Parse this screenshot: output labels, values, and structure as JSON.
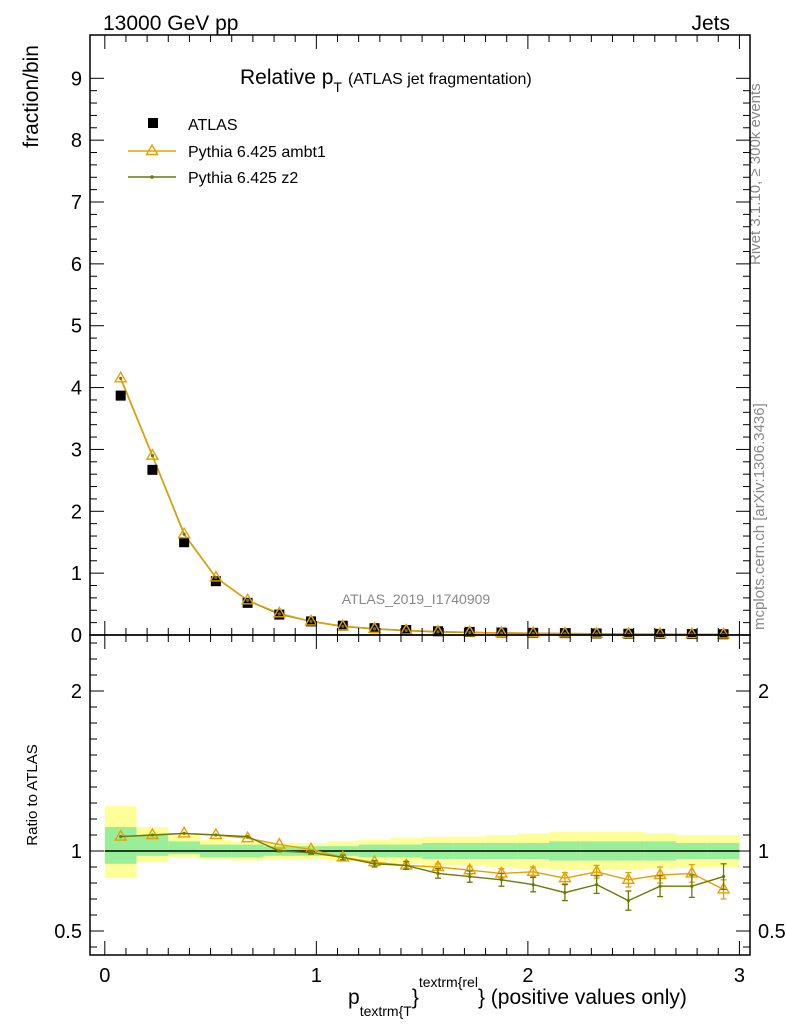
{
  "header": {
    "left": "13000 GeV pp",
    "right": "Jets"
  },
  "side_labels": {
    "rivet": "Rivet 3.1.10, ≥ 300k events",
    "mcplots": "mcplots.cern.ch [arXiv:1306.3436]"
  },
  "chart_data": [
    {
      "type": "scatter",
      "title_main": "Relative p",
      "title_sub": "T",
      "title_paren": "(ATLAS jet fragmentation)",
      "ylabel": "fraction/bin",
      "watermark": "ATLAS_2019_I1740909",
      "xlim": [
        -0.07,
        3.05
      ],
      "ylim": [
        0,
        9.7
      ],
      "yticks": [
        0,
        1,
        2,
        3,
        4,
        5,
        6,
        7,
        8,
        9
      ],
      "x": [
        0.075,
        0.225,
        0.375,
        0.525,
        0.675,
        0.825,
        0.975,
        1.125,
        1.275,
        1.425,
        1.575,
        1.725,
        1.875,
        2.025,
        2.175,
        2.325,
        2.475,
        2.625,
        2.775,
        2.925
      ],
      "legend": [
        {
          "name": "ATLAS",
          "color": "#000000",
          "marker": "square"
        },
        {
          "name": "Pythia 6.425 ambt1",
          "color": "#e8a000",
          "marker": "triangle"
        },
        {
          "name": "Pythia 6.425 z2",
          "color": "#6b7a00",
          "marker": "dot"
        }
      ],
      "series": [
        {
          "values": [
            3.87,
            2.67,
            1.5,
            0.87,
            0.52,
            0.33,
            0.22,
            0.15,
            0.11,
            0.08,
            0.06,
            0.05,
            0.04,
            0.035,
            0.03,
            0.025,
            0.02,
            0.018,
            0.015,
            0.012
          ]
        },
        {
          "values": [
            4.15,
            2.9,
            1.63,
            0.93,
            0.56,
            0.35,
            0.22,
            0.14,
            0.1,
            0.073,
            0.055,
            0.044,
            0.034,
            0.03,
            0.025,
            0.021,
            0.016,
            0.015,
            0.013,
            0.009
          ]
        },
        {
          "values": [
            4.15,
            2.9,
            1.63,
            0.93,
            0.56,
            0.34,
            0.22,
            0.14,
            0.1,
            0.072,
            0.051,
            0.041,
            0.032,
            0.027,
            0.022,
            0.02,
            0.014,
            0.014,
            0.012,
            0.01
          ]
        }
      ]
    },
    {
      "type": "line",
      "ylabel": "Ratio to ATLAS",
      "xlabel_main": "p",
      "xlabel_sub": "textrm{T",
      "xlabel_sup": "textrm{rel",
      "xlabel_tail": "} (positive values only)",
      "xlim": [
        -0.07,
        3.05
      ],
      "ylim": [
        0.35,
        2.35
      ],
      "xticks": [
        0,
        1,
        2,
        3
      ],
      "ytick_labels": [
        {
          "value": 0.5,
          "label": "0.5"
        },
        {
          "value": 1,
          "label": "1"
        },
        {
          "value": 2,
          "label": "2"
        }
      ],
      "reference": 1,
      "bins": [
        {
          "lo": 0.0,
          "hi": 0.15,
          "green": [
            0.92,
            1.15
          ],
          "yellow": [
            0.83,
            1.28
          ]
        },
        {
          "lo": 0.15,
          "hi": 0.3,
          "green": [
            0.97,
            1.1
          ],
          "yellow": [
            0.93,
            1.15
          ]
        },
        {
          "lo": 0.3,
          "hi": 0.45,
          "green": [
            0.98,
            1.06
          ],
          "yellow": [
            0.96,
            1.1
          ]
        },
        {
          "lo": 0.45,
          "hi": 0.6,
          "green": [
            0.96,
            1.04
          ],
          "yellow": [
            0.95,
            1.07
          ]
        },
        {
          "lo": 0.6,
          "hi": 0.75,
          "green": [
            0.96,
            1.04
          ],
          "yellow": [
            0.94,
            1.06
          ]
        },
        {
          "lo": 0.75,
          "hi": 0.9,
          "green": [
            0.97,
            1.03
          ],
          "yellow": [
            0.95,
            1.05
          ]
        },
        {
          "lo": 0.9,
          "hi": 1.05,
          "green": [
            0.97,
            1.03
          ],
          "yellow": [
            0.95,
            1.05
          ]
        },
        {
          "lo": 1.05,
          "hi": 1.2,
          "green": [
            0.97,
            1.03
          ],
          "yellow": [
            0.94,
            1.06
          ]
        },
        {
          "lo": 1.2,
          "hi": 1.35,
          "green": [
            0.96,
            1.04
          ],
          "yellow": [
            0.93,
            1.07
          ]
        },
        {
          "lo": 1.35,
          "hi": 1.5,
          "green": [
            0.96,
            1.04
          ],
          "yellow": [
            0.92,
            1.08
          ]
        },
        {
          "lo": 1.5,
          "hi": 1.65,
          "green": [
            0.95,
            1.05
          ],
          "yellow": [
            0.91,
            1.09
          ]
        },
        {
          "lo": 1.65,
          "hi": 1.8,
          "green": [
            0.95,
            1.05
          ],
          "yellow": [
            0.91,
            1.09
          ]
        },
        {
          "lo": 1.8,
          "hi": 1.95,
          "green": [
            0.95,
            1.05
          ],
          "yellow": [
            0.9,
            1.1
          ]
        },
        {
          "lo": 1.95,
          "hi": 2.1,
          "green": [
            0.95,
            1.05
          ],
          "yellow": [
            0.89,
            1.11
          ]
        },
        {
          "lo": 2.1,
          "hi": 2.25,
          "green": [
            0.94,
            1.06
          ],
          "yellow": [
            0.88,
            1.12
          ]
        },
        {
          "lo": 2.25,
          "hi": 2.4,
          "green": [
            0.94,
            1.06
          ],
          "yellow": [
            0.88,
            1.12
          ]
        },
        {
          "lo": 2.4,
          "hi": 2.55,
          "green": [
            0.94,
            1.06
          ],
          "yellow": [
            0.88,
            1.12
          ]
        },
        {
          "lo": 2.55,
          "hi": 2.7,
          "green": [
            0.94,
            1.06
          ],
          "yellow": [
            0.89,
            1.11
          ]
        },
        {
          "lo": 2.7,
          "hi": 2.85,
          "green": [
            0.95,
            1.05
          ],
          "yellow": [
            0.9,
            1.1
          ]
        },
        {
          "lo": 2.85,
          "hi": 3.0,
          "green": [
            0.95,
            1.05
          ],
          "yellow": [
            0.9,
            1.1
          ]
        }
      ],
      "x": [
        0.075,
        0.225,
        0.375,
        0.525,
        0.675,
        0.825,
        0.975,
        1.125,
        1.275,
        1.425,
        1.575,
        1.725,
        1.875,
        2.025,
        2.175,
        2.325,
        2.475,
        2.625,
        2.775,
        2.925
      ],
      "series": [
        {
          "color": "#e8a000",
          "values": [
            1.09,
            1.1,
            1.11,
            1.1,
            1.08,
            1.04,
            1.01,
            0.96,
            0.93,
            0.91,
            0.9,
            0.88,
            0.86,
            0.87,
            0.83,
            0.87,
            0.82,
            0.85,
            0.86,
            0.76
          ],
          "errors": [
            0.0,
            0.0,
            0.0,
            0.0,
            0.0,
            0.0,
            0.0,
            0.0,
            0.01,
            0.015,
            0.02,
            0.025,
            0.03,
            0.03,
            0.035,
            0.04,
            0.045,
            0.05,
            0.055,
            0.06
          ]
        },
        {
          "color": "#6b7a00",
          "values": [
            1.09,
            1.1,
            1.11,
            1.1,
            1.09,
            1.0,
            0.99,
            0.96,
            0.92,
            0.91,
            0.86,
            0.84,
            0.82,
            0.79,
            0.74,
            0.79,
            0.69,
            0.78,
            0.78,
            0.84
          ],
          "errors": [
            0.0,
            0.0,
            0.0,
            0.0,
            0.0,
            0.005,
            0.01,
            0.015,
            0.02,
            0.025,
            0.03,
            0.035,
            0.04,
            0.045,
            0.05,
            0.055,
            0.06,
            0.065,
            0.07,
            0.08
          ]
        }
      ]
    }
  ]
}
